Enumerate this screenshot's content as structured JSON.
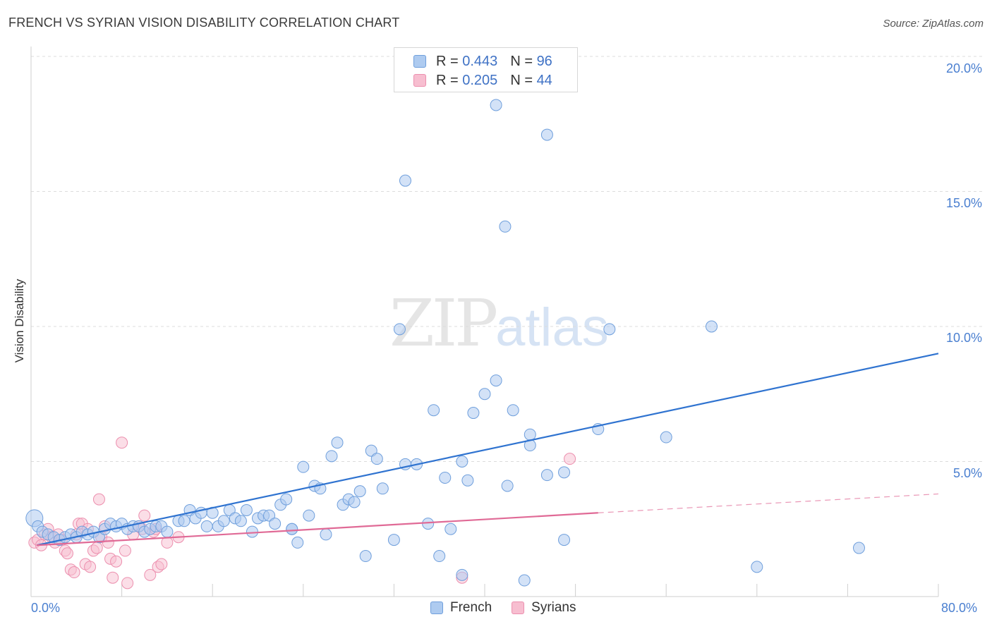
{
  "title": "FRENCH VS SYRIAN VISION DISABILITY CORRELATION CHART",
  "source": "Source: ZipAtlas.com",
  "watermark": {
    "zip": "ZIP",
    "atlas": "atlas"
  },
  "legend_top": [
    {
      "r_label": "R = ",
      "r_value": "0.443",
      "n_label": "N = ",
      "n_value": "96"
    },
    {
      "r_label": "R = ",
      "r_value": "0.205",
      "n_label": "N = ",
      "n_value": "44"
    }
  ],
  "legend_bottom": [
    "French",
    "Syrians"
  ],
  "colors": {
    "french_fill": "#aecbf0",
    "french_stroke": "#6f9fdc",
    "french_line": "#2f73d0",
    "syrian_fill": "#f7bed0",
    "syrian_stroke": "#ec8fae",
    "syrian_line": "#e06a96",
    "tick_text": "#4a7fd0"
  },
  "chart_data": {
    "type": "scatter",
    "title": "FRENCH VS SYRIAN VISION DISABILITY CORRELATION CHART",
    "xlabel": "",
    "ylabel": "Vision Disability",
    "xlim": [
      0,
      80
    ],
    "ylim": [
      0,
      20
    ],
    "x_tick_labels": [
      "0.0%",
      "80.0%"
    ],
    "y_ticks": [
      5,
      10,
      15,
      20
    ],
    "y_tick_labels": [
      "5.0%",
      "10.0%",
      "15.0%",
      "20.0%"
    ],
    "grid": "horizontal dashed",
    "legend_placement": "top-center and bottom",
    "series": [
      {
        "name": "French",
        "R": 0.443,
        "N": 96,
        "trend": {
          "x": [
            0.5,
            80
          ],
          "y": [
            1.9,
            9.0
          ]
        },
        "points": [
          [
            0.3,
            2.9
          ],
          [
            0.6,
            2.6
          ],
          [
            1.0,
            2.4
          ],
          [
            1.5,
            2.3
          ],
          [
            2.0,
            2.2
          ],
          [
            2.5,
            2.1
          ],
          [
            3.0,
            2.2
          ],
          [
            3.5,
            2.3
          ],
          [
            4.0,
            2.2
          ],
          [
            4.5,
            2.4
          ],
          [
            5.0,
            2.3
          ],
          [
            5.5,
            2.4
          ],
          [
            6.0,
            2.2
          ],
          [
            6.5,
            2.5
          ],
          [
            7.0,
            2.7
          ],
          [
            7.5,
            2.6
          ],
          [
            8.0,
            2.7
          ],
          [
            8.5,
            2.5
          ],
          [
            9.0,
            2.6
          ],
          [
            9.5,
            2.6
          ],
          [
            10.0,
            2.4
          ],
          [
            10.5,
            2.5
          ],
          [
            11.0,
            2.6
          ],
          [
            11.5,
            2.6
          ],
          [
            12.0,
            2.4
          ],
          [
            13.0,
            2.8
          ],
          [
            13.5,
            2.8
          ],
          [
            14.0,
            3.2
          ],
          [
            14.5,
            2.9
          ],
          [
            15.0,
            3.1
          ],
          [
            15.5,
            2.6
          ],
          [
            16.0,
            3.1
          ],
          [
            16.5,
            2.6
          ],
          [
            17.0,
            2.8
          ],
          [
            17.5,
            3.2
          ],
          [
            18.0,
            2.9
          ],
          [
            18.5,
            2.8
          ],
          [
            19.0,
            3.2
          ],
          [
            19.5,
            2.4
          ],
          [
            20.0,
            2.9
          ],
          [
            20.5,
            3.0
          ],
          [
            21.0,
            3.0
          ],
          [
            21.5,
            2.7
          ],
          [
            22.0,
            3.4
          ],
          [
            22.5,
            3.6
          ],
          [
            23.0,
            2.5
          ],
          [
            23.5,
            2.0
          ],
          [
            24.0,
            4.8
          ],
          [
            24.5,
            3.0
          ],
          [
            25.0,
            4.1
          ],
          [
            25.5,
            4.0
          ],
          [
            26.0,
            2.3
          ],
          [
            26.5,
            5.2
          ],
          [
            27.0,
            5.7
          ],
          [
            27.5,
            3.4
          ],
          [
            28.0,
            3.6
          ],
          [
            28.5,
            3.5
          ],
          [
            29.0,
            3.9
          ],
          [
            29.5,
            1.5
          ],
          [
            30.0,
            5.4
          ],
          [
            30.5,
            5.1
          ],
          [
            31.0,
            4.0
          ],
          [
            32.5,
            9.9
          ],
          [
            32.0,
            2.1
          ],
          [
            33.0,
            15.4
          ],
          [
            33.0,
            4.9
          ],
          [
            34.0,
            4.9
          ],
          [
            35.0,
            2.7
          ],
          [
            35.5,
            6.9
          ],
          [
            36.0,
            1.5
          ],
          [
            36.5,
            4.4
          ],
          [
            37.0,
            2.5
          ],
          [
            38.0,
            5.0
          ],
          [
            38.5,
            4.3
          ],
          [
            39.0,
            6.8
          ],
          [
            40.0,
            7.5
          ],
          [
            41.0,
            18.2
          ],
          [
            41.0,
            8.0
          ],
          [
            41.8,
            13.7
          ],
          [
            42.0,
            4.1
          ],
          [
            42.5,
            6.9
          ],
          [
            43.5,
            0.6
          ],
          [
            44.0,
            5.6
          ],
          [
            44.0,
            6.0
          ],
          [
            45.5,
            17.1
          ],
          [
            45.5,
            4.5
          ],
          [
            47.0,
            2.1
          ],
          [
            47.0,
            4.6
          ],
          [
            50.0,
            6.2
          ],
          [
            51.0,
            9.9
          ],
          [
            56.0,
            5.9
          ],
          [
            60.0,
            10.0
          ],
          [
            64.0,
            1.1
          ],
          [
            73.0,
            1.8
          ],
          [
            38.0,
            0.8
          ],
          [
            23.0,
            2.5
          ]
        ]
      },
      {
        "name": "Syrians",
        "R": 0.205,
        "N": 44,
        "trend": {
          "x": [
            0.5,
            50
          ],
          "y": [
            1.9,
            3.1
          ]
        },
        "trend_dashed": {
          "x": [
            50,
            80
          ],
          "y": [
            3.1,
            3.8
          ]
        },
        "points": [
          [
            0.3,
            2.0
          ],
          [
            0.6,
            2.1
          ],
          [
            0.9,
            1.9
          ],
          [
            1.2,
            2.3
          ],
          [
            1.5,
            2.5
          ],
          [
            1.8,
            2.2
          ],
          [
            2.1,
            2.0
          ],
          [
            2.4,
            2.3
          ],
          [
            2.7,
            2.1
          ],
          [
            3.0,
            1.7
          ],
          [
            3.2,
            1.6
          ],
          [
            3.5,
            1.0
          ],
          [
            3.8,
            0.9
          ],
          [
            4.0,
            2.3
          ],
          [
            4.2,
            2.7
          ],
          [
            4.5,
            2.7
          ],
          [
            4.8,
            1.2
          ],
          [
            5.0,
            2.5
          ],
          [
            5.2,
            1.1
          ],
          [
            5.5,
            1.7
          ],
          [
            5.8,
            1.8
          ],
          [
            6.0,
            3.6
          ],
          [
            6.2,
            2.2
          ],
          [
            6.5,
            2.6
          ],
          [
            6.8,
            2.0
          ],
          [
            7.0,
            1.4
          ],
          [
            7.2,
            0.7
          ],
          [
            7.5,
            1.3
          ],
          [
            8.0,
            5.7
          ],
          [
            8.3,
            1.7
          ],
          [
            8.5,
            0.5
          ],
          [
            9.0,
            2.3
          ],
          [
            9.5,
            2.6
          ],
          [
            9.8,
            2.5
          ],
          [
            10.0,
            3.0
          ],
          [
            10.5,
            0.8
          ],
          [
            10.8,
            2.4
          ],
          [
            11.0,
            2.5
          ],
          [
            11.2,
            1.1
          ],
          [
            11.5,
            1.2
          ],
          [
            12.0,
            2.0
          ],
          [
            13.0,
            2.2
          ],
          [
            38.0,
            0.7
          ],
          [
            47.5,
            5.1
          ]
        ]
      }
    ]
  }
}
